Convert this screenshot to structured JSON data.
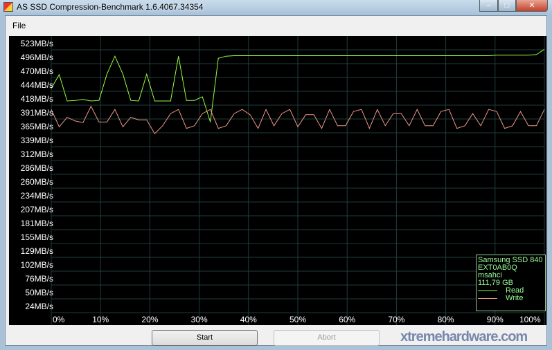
{
  "window": {
    "title": "AS SSD Compression-Benchmark 1.6.4067.34354",
    "minimize": "–",
    "maximize": "□",
    "close": "✕"
  },
  "menu": {
    "file": "File"
  },
  "chart_data": {
    "type": "line",
    "y_tick_labels": [
      "523MB/s",
      "496MB/s",
      "470MB/s",
      "444MB/s",
      "418MB/s",
      "391MB/s",
      "365MB/s",
      "339MB/s",
      "312MB/s",
      "286MB/s",
      "260MB/s",
      "234MB/s",
      "207MB/s",
      "181MB/s",
      "155MB/s",
      "129MB/s",
      "102MB/s",
      "76MB/s",
      "50MB/s",
      "24MB/s"
    ],
    "x_tick_labels": [
      "0%",
      "10%",
      "20%",
      "30%",
      "40%",
      "50%",
      "60%",
      "70%",
      "80%",
      "90%",
      "100%"
    ],
    "xlim": [
      0,
      100
    ],
    "grid": true,
    "legend_placement": "bottom-right",
    "series": [
      {
        "name": "Read",
        "color": "#99ff44",
        "values": [
          442,
          468,
          418,
          419,
          421,
          418,
          419,
          469,
          503,
          469,
          419,
          418,
          469,
          418,
          418,
          418,
          503,
          419,
          419,
          426,
          378,
          499,
          503,
          504,
          504,
          504,
          504,
          504,
          504,
          504,
          504,
          504,
          504,
          504,
          504,
          504,
          504,
          504,
          504,
          504,
          504,
          504,
          504,
          504,
          504,
          504,
          504,
          504,
          504,
          504,
          504,
          504,
          504,
          504,
          504,
          504,
          505,
          505,
          505,
          505,
          505,
          506,
          516
        ]
      },
      {
        "name": "Write",
        "color": "#ee9988",
        "values": [
          402,
          369,
          387,
          380,
          377,
          408,
          378,
          378,
          402,
          369,
          387,
          382,
          382,
          356,
          371,
          394,
          402,
          366,
          371,
          394,
          402,
          366,
          371,
          394,
          402,
          392,
          366,
          402,
          371,
          394,
          402,
          369,
          392,
          392,
          366,
          402,
          371,
          371,
          398,
          402,
          366,
          402,
          371,
          394,
          394,
          371,
          402,
          371,
          371,
          398,
          402,
          366,
          371,
          394,
          371,
          402,
          398,
          366,
          371,
          398,
          371,
          371,
          402
        ]
      }
    ]
  },
  "legend": {
    "drive": "Samsung SSD 840",
    "firmware": "EXT0AB0Q",
    "driver": "msahci",
    "size": "111,79 GB",
    "read": "Read",
    "write": "Write"
  },
  "buttons": {
    "start": "Start",
    "abort": "Abort"
  },
  "watermark": "xtremehardware.com"
}
